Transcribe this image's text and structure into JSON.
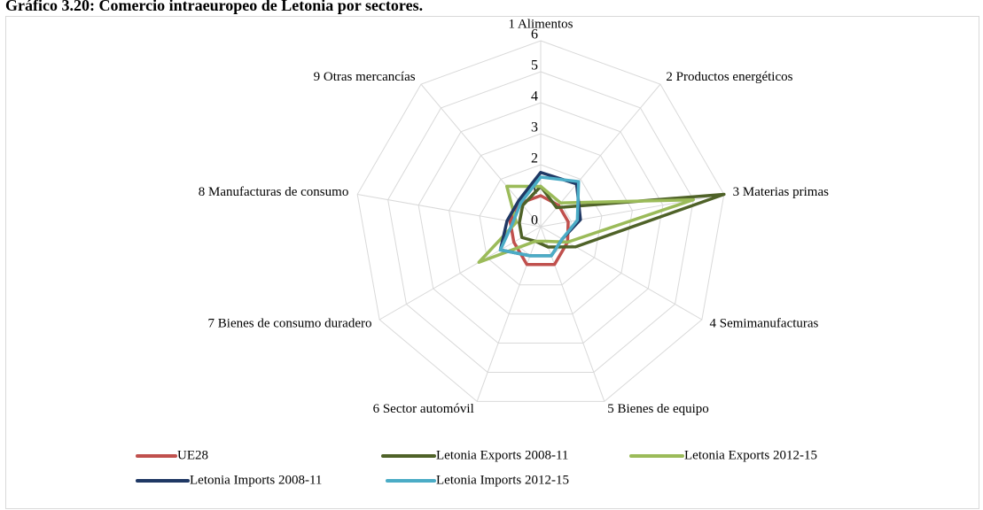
{
  "chart_data": {
    "type": "radar",
    "title": "Gráfico 3.20: Comercio intraeuropeo de Letonia por sectores.",
    "categories": [
      "1 Alimentos",
      "2 Productos energéticos",
      "3 Materias primas",
      "4 Semimanufacturas",
      "5 Bienes de equipo",
      "6 Sector automóvil",
      "7 Bienes de consumo duradero",
      "8 Manufacturas de consumo",
      "9 Otras mercancías"
    ],
    "rlim": [
      0,
      6
    ],
    "rticks": [
      0,
      1,
      2,
      3,
      4,
      5,
      6
    ],
    "grid": true,
    "series": [
      {
        "name": "UE28",
        "color": "#c0504d",
        "values": [
          1.0,
          0.9,
          0.9,
          1.0,
          1.3,
          1.3,
          1.0,
          1.0,
          1.0
        ]
      },
      {
        "name": "Letonia Exports 2008-11",
        "color": "#4f6228",
        "values": [
          1.3,
          0.8,
          6.0,
          1.3,
          0.7,
          0.5,
          0.7,
          0.7,
          0.9
        ]
      },
      {
        "name": "Letonia Exports 2012-15",
        "color": "#9bbb59",
        "values": [
          1.3,
          1.0,
          5.0,
          1.0,
          0.5,
          0.5,
          2.3,
          0.8,
          1.7
        ]
      },
      {
        "name": "Letonia Imports 2008-11",
        "color": "#1f3864",
        "values": [
          1.75,
          1.8,
          1.3,
          0.8,
          1.0,
          1.0,
          1.5,
          1.1,
          1.1
        ]
      },
      {
        "name": "Letonia Imports 2012-15",
        "color": "#4bacc6",
        "values": [
          1.6,
          1.9,
          1.2,
          0.8,
          1.0,
          1.0,
          1.5,
          0.9,
          1.0
        ]
      }
    ]
  }
}
